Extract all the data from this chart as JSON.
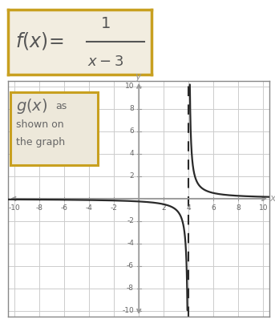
{
  "asymptote_x": 4,
  "xlim": [
    -10.5,
    10.5
  ],
  "ylim": [
    -10.5,
    10.5
  ],
  "xticks": [
    -10,
    -8,
    -6,
    -4,
    -2,
    2,
    4,
    6,
    8,
    10
  ],
  "yticks": [
    -10,
    -8,
    -6,
    -4,
    -2,
    2,
    4,
    6,
    8,
    10
  ],
  "curve_color": "#2a2a2a",
  "asymptote_color": "#2a2a2a",
  "grid_color": "#cccccc",
  "axis_color": "#999999",
  "tick_color": "#666666",
  "box_border_color": "#c8a020",
  "formula_bg": "#f2ede0",
  "graph_bg": "#ffffff",
  "label_bg": "#ede8da",
  "outer_bg": "#ffffff",
  "fig_width": 3.43,
  "fig_height": 4.03
}
